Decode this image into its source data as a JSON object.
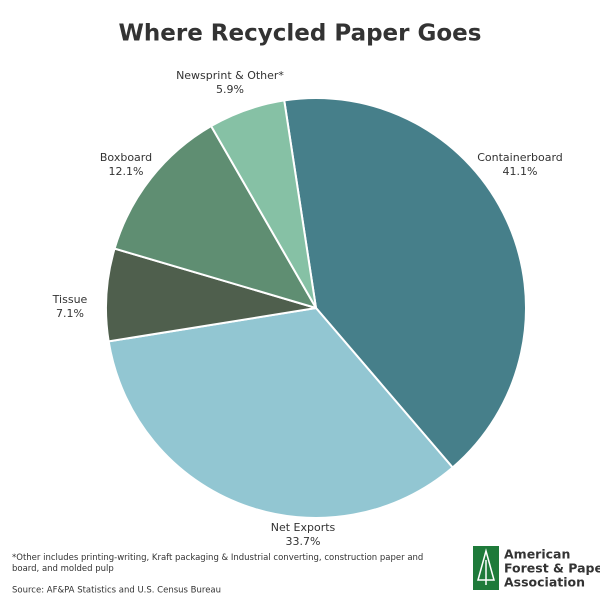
{
  "chart_data": {
    "type": "pie",
    "title": "Where Recycled Paper Goes",
    "categories": [
      "Containerboard",
      "Net Exports",
      "Tissue",
      "Boxboard",
      "Newsprint & Other*"
    ],
    "values": [
      41.1,
      33.7,
      7.1,
      12.1,
      5.9
    ],
    "value_labels": [
      "41.1%",
      "33.7%",
      "7.1%",
      "12.1%",
      "5.9%"
    ],
    "colors": [
      "#467f8a",
      "#92c6d2",
      "#4f5f4d",
      "#5f8e72",
      "#86c1a5"
    ]
  },
  "footnote": "*Other includes printing-writing, Kraft packaging & Industrial  converting, construction paper and board, and molded pulp",
  "source": "Source: AF&PA Statistics and U.S. Census Bureau",
  "logo": [
    "American",
    "Forest & Paper",
    "Association"
  ]
}
